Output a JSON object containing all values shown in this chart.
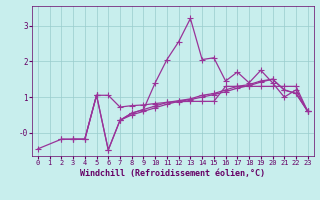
{
  "xlabel": "Windchill (Refroidissement éolien,°C)",
  "xlim": [
    -0.5,
    23.5
  ],
  "ylim": [
    -0.65,
    3.55
  ],
  "yticks": [
    0,
    1,
    2,
    3
  ],
  "ytick_labels": [
    "-0",
    "1",
    "2",
    "3"
  ],
  "xticks": [
    0,
    1,
    2,
    3,
    4,
    5,
    6,
    7,
    8,
    9,
    10,
    11,
    12,
    13,
    14,
    15,
    16,
    17,
    18,
    19,
    20,
    21,
    22,
    23
  ],
  "background_color": "#c8eeed",
  "grid_color": "#99cccc",
  "line_color": "#993399",
  "series": [
    [
      -0.45,
      null,
      -0.18,
      -0.18,
      -0.18,
      1.05,
      -0.48,
      0.35,
      0.55,
      0.65,
      0.75,
      0.85,
      0.9,
      0.95,
      1.05,
      1.1,
      1.2,
      1.3,
      1.35,
      1.45,
      1.5,
      1.2,
      1.1,
      0.6
    ],
    [
      null,
      null,
      -0.18,
      -0.18,
      -0.18,
      1.05,
      1.05,
      0.72,
      0.76,
      0.78,
      0.82,
      0.85,
      0.87,
      0.88,
      0.88,
      0.88,
      1.3,
      1.3,
      1.3,
      1.3,
      1.3,
      1.3,
      1.3,
      0.6
    ],
    [
      null,
      null,
      null,
      null,
      null,
      null,
      null,
      0.35,
      0.5,
      0.6,
      0.7,
      0.8,
      0.88,
      0.93,
      1.0,
      1.07,
      1.15,
      1.25,
      1.32,
      1.42,
      1.5,
      1.2,
      1.1,
      0.6
    ],
    [
      null,
      null,
      null,
      -0.18,
      -0.18,
      1.05,
      -0.48,
      0.35,
      0.55,
      0.65,
      1.4,
      2.05,
      2.55,
      3.2,
      2.05,
      2.1,
      1.45,
      1.7,
      1.4,
      1.75,
      1.4,
      1.0,
      1.2,
      0.6
    ]
  ],
  "marker": "+",
  "markersize": 4,
  "linewidth": 0.9,
  "font_color": "#660066",
  "tick_fontsize": 5.0,
  "xlabel_fontsize": 6.0
}
